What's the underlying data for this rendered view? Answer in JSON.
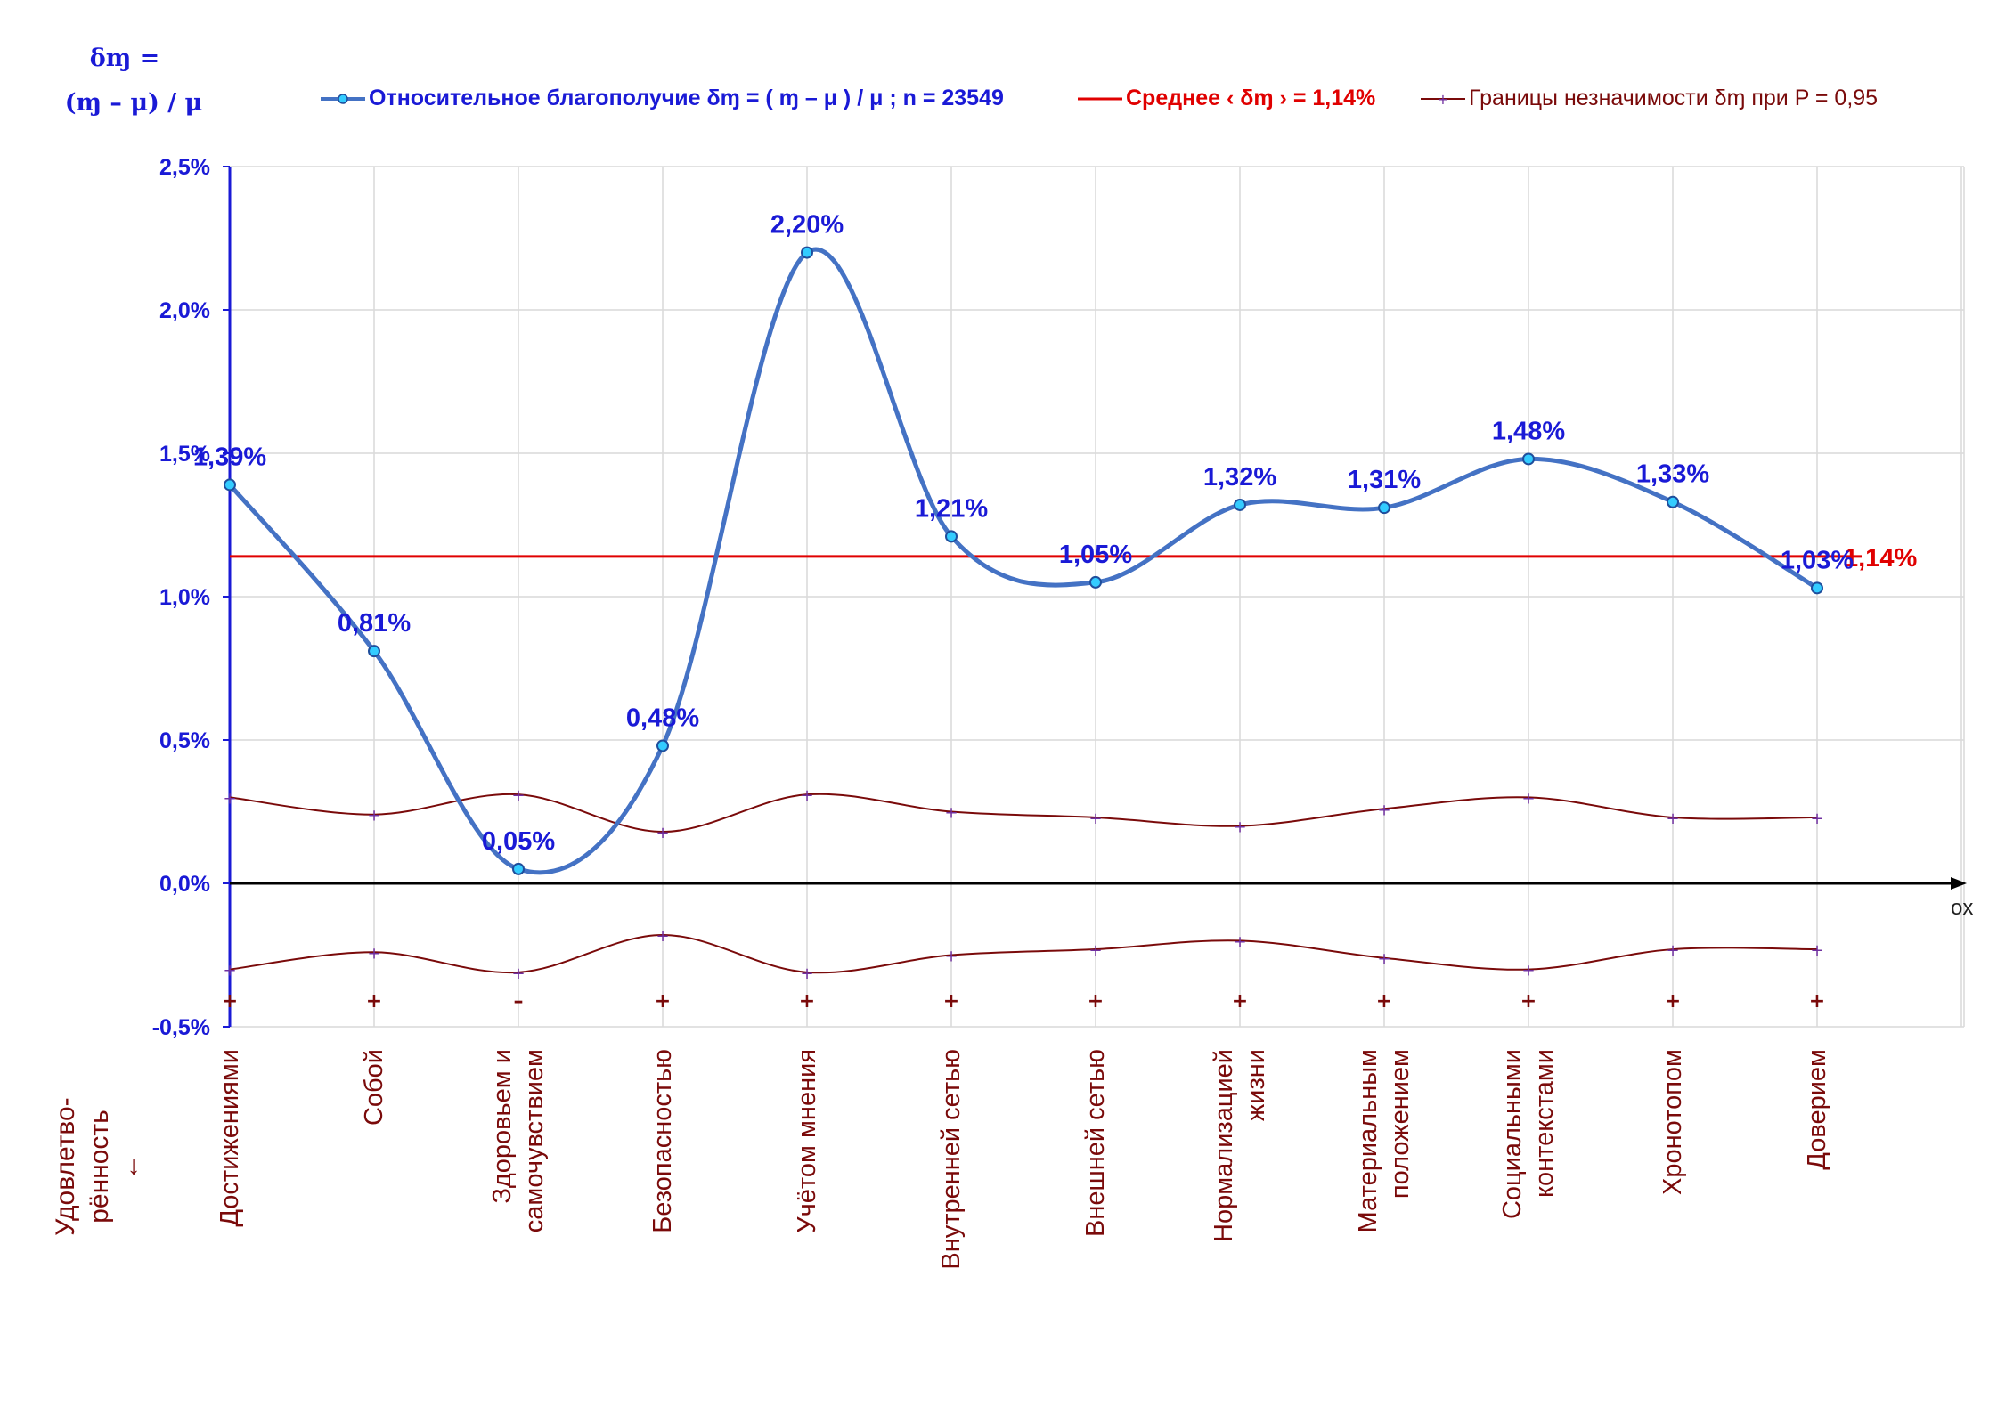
{
  "y_axis_title_line1": "δɱ =",
  "y_axis_title_line2": "(ɱ – μ) / μ",
  "legend": {
    "series1": "Относительное благополучие δɱ = ( ɱ – μ ) / μ ; n = 23549",
    "series2": "Среднее ‹ δɱ › = 1,14%",
    "series3": "Границы незначимости δɱ при P = 0,95"
  },
  "corner_label_line1": "Удовлетво-",
  "corner_label_line2": "рённость",
  "corner_label_arrow": "↓",
  "x_axis_end_label": "ox",
  "colors": {
    "series_line": "#4472c4",
    "marker_fill": "#33ccff",
    "data_label": "#1a1ad6",
    "mean_line": "#e00000",
    "bounds_line": "#7a0a0a",
    "bounds_marker": "#7030a0",
    "grid": "#d9d9d9",
    "y_axis": "#1a1ad6"
  },
  "chart_data": {
    "type": "line",
    "categories": [
      "Достижениями",
      "Собой",
      "Здоровьем и\nсамочувствием",
      "Безопасностью",
      "Учётом мнения",
      "Внутренней сетью",
      "Внешней сетью",
      "Нормализацией\nжизни",
      "Материальным\nположением",
      "Социальными\nконтекстами",
      "Хронотопом",
      "Доверием"
    ],
    "ylim": [
      -0.005,
      0.025
    ],
    "y_ticks": [
      -0.005,
      0,
      0.005,
      0.01,
      0.015,
      0.02,
      0.025
    ],
    "y_tick_labels": [
      "-0,5%",
      "0,0%",
      "0,5%",
      "1,0%",
      "1,5%",
      "2,0%",
      "2,5%"
    ],
    "grid": true,
    "legend_position": "top",
    "series": [
      {
        "name": "Относительное благополучие δɱ = ( ɱ – μ ) / μ ; n = 23549",
        "values": [
          0.0139,
          0.0081,
          0.0005,
          0.0048,
          0.022,
          0.0121,
          0.0105,
          0.0132,
          0.0131,
          0.0148,
          0.0133,
          0.0103
        ],
        "labels": [
          "1,39%",
          "0,81%",
          "0,05%",
          "0,48%",
          "2,20%",
          "1,21%",
          "1,05%",
          "1,32%",
          "1,31%",
          "1,48%",
          "1,33%",
          "1,03%"
        ]
      },
      {
        "name": "Среднее ‹ δɱ › = 1,14%",
        "value": 0.0114,
        "label": "1,14%"
      },
      {
        "name": "Границы незначимости δɱ при P = 0,95",
        "upper": [
          0.003,
          0.0024,
          0.0031,
          0.0018,
          0.0031,
          0.0025,
          0.0023,
          0.002,
          0.0026,
          0.003,
          0.0023,
          0.0023
        ],
        "lower": [
          -0.003,
          -0.0024,
          -0.0031,
          -0.0018,
          -0.0031,
          -0.0025,
          -0.0023,
          -0.002,
          -0.0026,
          -0.003,
          -0.0023,
          -0.0023
        ]
      }
    ],
    "significance_signs": [
      "+",
      "+",
      "–",
      "+",
      "+",
      "+",
      "+",
      "+",
      "+",
      "+",
      "+",
      "+"
    ]
  }
}
